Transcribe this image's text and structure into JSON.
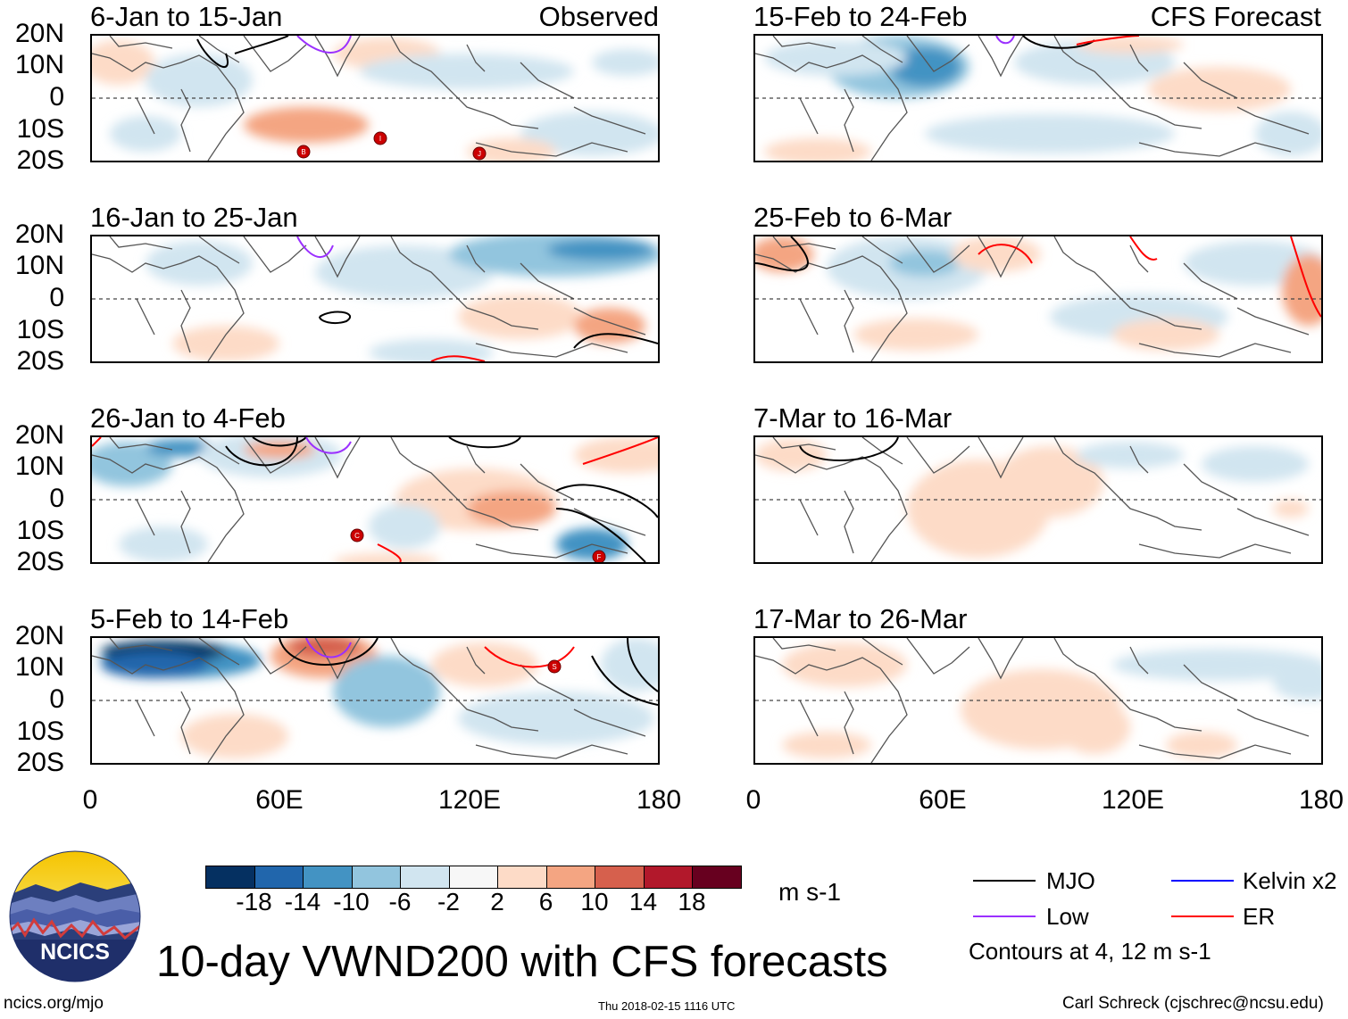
{
  "panels": [
    {
      "title": "6-Jan to 15-Jan",
      "label": "Observed"
    },
    {
      "title": "16-Jan to 25-Jan",
      "label": ""
    },
    {
      "title": "26-Jan to 4-Feb",
      "label": ""
    },
    {
      "title": "5-Feb to 14-Feb",
      "label": ""
    },
    {
      "title": "15-Feb to 24-Feb",
      "label": "CFS Forecast"
    },
    {
      "title": "25-Feb to 6-Mar",
      "label": ""
    },
    {
      "title": "7-Mar to 16-Mar",
      "label": ""
    },
    {
      "title": "17-Mar to 26-Mar",
      "label": ""
    }
  ],
  "lat_labels": [
    "20N",
    "10N",
    "0",
    "10S",
    "20S"
  ],
  "lon_labels": [
    "0",
    "60E",
    "120E",
    "180"
  ],
  "colorbar": {
    "ticks": [
      "-18",
      "-14",
      "-10",
      "-6",
      "-2",
      "2",
      "6",
      "10",
      "14",
      "18"
    ],
    "units": "m s-1",
    "colors": [
      "#053061",
      "#2166ac",
      "#4393c3",
      "#92c5de",
      "#d1e5f0",
      "#f7f7f7",
      "#fddbc7",
      "#f4a582",
      "#d6604d",
      "#b2182b",
      "#67001f"
    ]
  },
  "legend": {
    "mjo": "MJO",
    "low": "Low",
    "kelvin": "Kelvin x2",
    "er": "ER",
    "contours": "Contours at 4, 12 m s-1",
    "colors": {
      "mjo": "#000000",
      "low": "#9b30ff",
      "kelvin": "#0000ff",
      "er": "#ff0000"
    }
  },
  "logo_text": "NCICS",
  "main_title": "10-day VWND200 with CFS forecasts",
  "footer": {
    "url": "ncics.org/mjo",
    "timestamp": "Thu 2018-02-15 1116 UTC",
    "credit": "Carl Schreck (cjschrec@ncsu.edu)"
  },
  "storms": [
    {
      "panel": 0,
      "letter": "B"
    },
    {
      "panel": 0,
      "letter": "I"
    },
    {
      "panel": 0,
      "letter": "J"
    },
    {
      "panel": 2,
      "letter": "C"
    },
    {
      "panel": 2,
      "letter": "F"
    },
    {
      "panel": 3,
      "letter": "S"
    }
  ]
}
